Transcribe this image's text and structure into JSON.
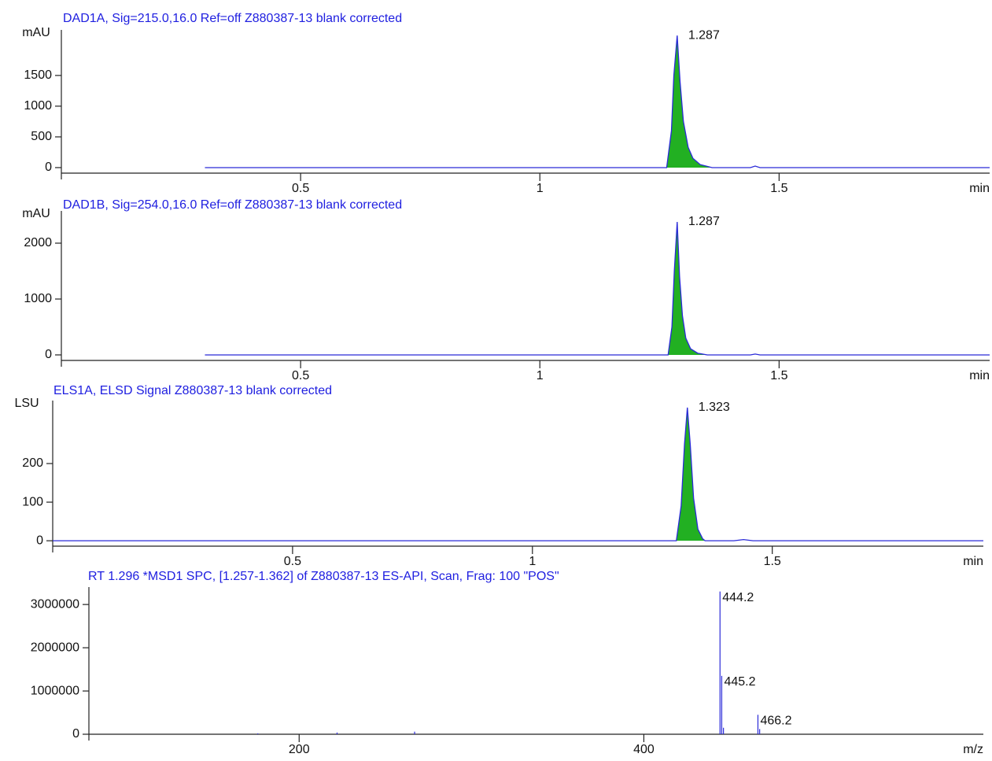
{
  "chart_data": [
    {
      "type": "chromatogram",
      "title": "DAD1A, Sig=215.0,16.0  Ref=off Z880387-13 blank corrected",
      "y_label": "mAU",
      "x_label": "min",
      "xlim": [
        0,
        1.94
      ],
      "ylim": [
        -90,
        2190
      ],
      "xticks": [
        0.5,
        1,
        1.5
      ],
      "yticks": [
        0,
        500,
        1000,
        1500
      ],
      "color": "#2a2ad8",
      "fill_color": "#22b022",
      "peak_x": 1.287,
      "integration": [
        1.265,
        1.36
      ],
      "x": [
        0.3,
        1.0,
        1.25,
        1.265,
        1.275,
        1.28,
        1.287,
        1.293,
        1.3,
        1.31,
        1.32,
        1.335,
        1.36,
        1.44,
        1.45,
        1.46,
        1.94
      ],
      "values": [
        0,
        0,
        0,
        0,
        600,
        1500,
        2150,
        1400,
        750,
        330,
        150,
        50,
        0,
        0,
        25,
        0,
        0
      ]
    },
    {
      "type": "chromatogram",
      "title": "DAD1B, Sig=254.0,16.0  Ref=off Z880387-13 blank corrected",
      "y_label": "mAU",
      "x_label": "min",
      "xlim": [
        0,
        1.94
      ],
      "ylim": [
        -99,
        2521
      ],
      "xticks": [
        0.5,
        1,
        1.5
      ],
      "yticks": [
        0,
        1000,
        2000
      ],
      "color": "#2a2ad8",
      "fill_color": "#22b022",
      "peak_x": 1.287,
      "integration": [
        1.265,
        1.35
      ],
      "x": [
        0.3,
        1.0,
        1.25,
        1.268,
        1.276,
        1.281,
        1.287,
        1.292,
        1.298,
        1.305,
        1.315,
        1.33,
        1.35,
        1.44,
        1.45,
        1.46,
        1.94
      ],
      "values": [
        0,
        0,
        0,
        0,
        500,
        1500,
        2380,
        1400,
        700,
        300,
        110,
        30,
        0,
        0,
        15,
        0,
        0
      ]
    },
    {
      "type": "chromatogram",
      "title": "ELS1A, ELSD Signal Z880387-13 blank corrected",
      "y_label": "LSU",
      "x_label": "min",
      "xlim": [
        0,
        1.94
      ],
      "ylim": [
        -14,
        355
      ],
      "xticks": [
        0.5,
        1,
        1.5
      ],
      "yticks": [
        0,
        100,
        200
      ],
      "color": "#2a2ad8",
      "fill_color": "#22b022",
      "peak_x": 1.323,
      "integration": [
        1.3,
        1.36
      ],
      "x": [
        0.0,
        1.0,
        1.29,
        1.3,
        1.31,
        1.317,
        1.323,
        1.329,
        1.336,
        1.345,
        1.355,
        1.36,
        1.42,
        1.44,
        1.46,
        1.94
      ],
      "values": [
        0,
        0,
        0,
        0,
        90,
        250,
        345,
        250,
        110,
        30,
        5,
        0,
        0,
        3,
        0,
        0
      ]
    },
    {
      "type": "spectrum",
      "title": "RT 1.296 *MSD1 SPC, [1.257-1.362] of Z880387-13 ES-API, Scan, Frag: 100 \"POS\"",
      "x_label": "m/z",
      "xlim": [
        78,
        597
      ],
      "ylim": [
        0,
        3330000
      ],
      "xticks": [
        200,
        400
      ],
      "yticks": [
        0,
        1000000,
        2000000,
        3000000
      ],
      "color": "#2a2ad8",
      "x": [
        444.2,
        445.2,
        466.2
      ],
      "values": [
        3300000,
        1350000,
        450000
      ],
      "minor_x": [
        176,
        222,
        267,
        446.2,
        467.2
      ],
      "minor_values": [
        20000,
        40000,
        60000,
        150000,
        120000
      ]
    }
  ]
}
